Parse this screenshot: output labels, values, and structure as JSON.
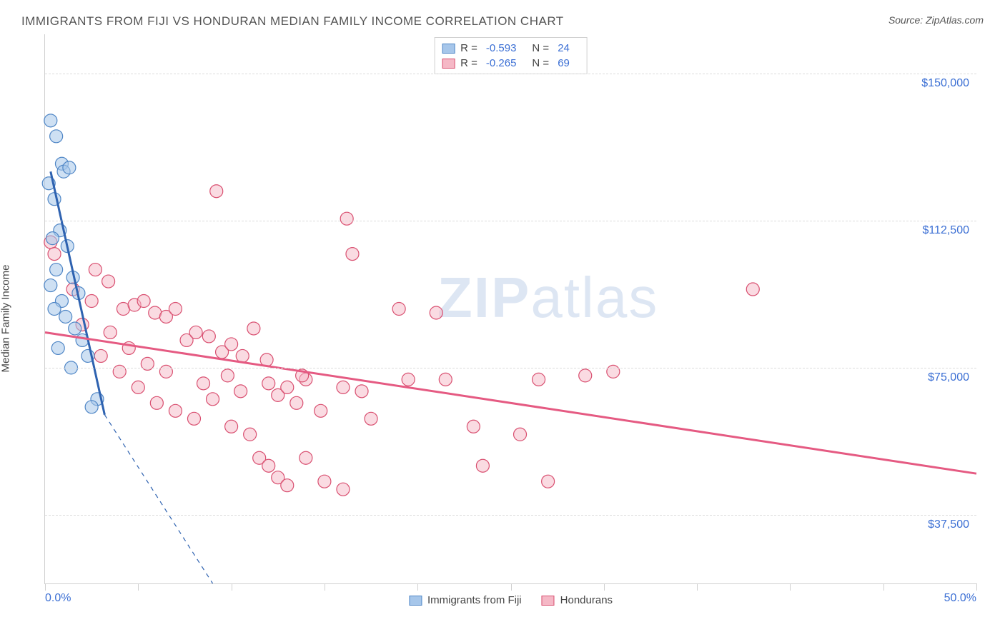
{
  "title": "IMMIGRANTS FROM FIJI VS HONDURAN MEDIAN FAMILY INCOME CORRELATION CHART",
  "source_label": "Source: ZipAtlas.com",
  "y_axis_label": "Median Family Income",
  "watermark": {
    "part1": "ZIP",
    "part2": "atlas"
  },
  "chart": {
    "type": "scatter",
    "background_color": "#ffffff",
    "grid_color": "#dcdcdc",
    "border_color": "#d0d0d0",
    "x": {
      "min": 0,
      "max": 50,
      "label_min": "0.0%",
      "label_max": "50.0%",
      "ticks_pct": [
        0,
        5,
        10,
        15,
        20,
        25,
        30,
        35,
        40,
        45,
        50
      ]
    },
    "y": {
      "min": 20000,
      "max": 160000,
      "gridlines": [
        37500,
        75000,
        112500,
        150000
      ],
      "tick_labels": [
        "$37,500",
        "$75,000",
        "$112,500",
        "$150,000"
      ]
    },
    "series": [
      {
        "name": "Immigrants from Fiji",
        "fill": "#a6c6ea",
        "stroke": "#4f86c6",
        "fill_opacity": 0.55,
        "marker_radius": 9,
        "R": "-0.593",
        "N": "24",
        "trend": {
          "x1": 0.3,
          "y1": 125000,
          "x2": 3.2,
          "y2": 63000,
          "dash_x2": 9.0,
          "dash_y2": 20000,
          "color": "#2e62b0",
          "width": 3
        },
        "points": [
          [
            0.3,
            138000
          ],
          [
            0.6,
            134000
          ],
          [
            0.9,
            127000
          ],
          [
            1.0,
            125000
          ],
          [
            1.3,
            126000
          ],
          [
            0.2,
            122000
          ],
          [
            0.5,
            118000
          ],
          [
            0.8,
            110000
          ],
          [
            0.4,
            108000
          ],
          [
            1.2,
            106000
          ],
          [
            0.6,
            100000
          ],
          [
            1.5,
            98000
          ],
          [
            0.3,
            96000
          ],
          [
            1.8,
            94000
          ],
          [
            0.9,
            92000
          ],
          [
            0.5,
            90000
          ],
          [
            1.1,
            88000
          ],
          [
            1.6,
            85000
          ],
          [
            2.0,
            82000
          ],
          [
            0.7,
            80000
          ],
          [
            2.3,
            78000
          ],
          [
            1.4,
            75000
          ],
          [
            2.8,
            67000
          ],
          [
            2.5,
            65000
          ]
        ]
      },
      {
        "name": "Hondurans",
        "fill": "#f5b8c6",
        "stroke": "#d94f70",
        "fill_opacity": 0.5,
        "marker_radius": 9,
        "R": "-0.265",
        "N": "69",
        "trend": {
          "x1": 0,
          "y1": 84000,
          "x2": 50,
          "y2": 48000,
          "color": "#e55a82",
          "width": 3
        },
        "points": [
          [
            0.3,
            107000
          ],
          [
            0.5,
            104000
          ],
          [
            9.2,
            120000
          ],
          [
            16.2,
            113000
          ],
          [
            16.5,
            104000
          ],
          [
            1.5,
            95000
          ],
          [
            2.7,
            100000
          ],
          [
            3.4,
            97000
          ],
          [
            4.2,
            90000
          ],
          [
            4.8,
            91000
          ],
          [
            5.3,
            92000
          ],
          [
            5.9,
            89000
          ],
          [
            6.5,
            88000
          ],
          [
            7.0,
            90000
          ],
          [
            7.6,
            82000
          ],
          [
            8.1,
            84000
          ],
          [
            8.8,
            83000
          ],
          [
            9.5,
            79000
          ],
          [
            10.0,
            81000
          ],
          [
            10.6,
            78000
          ],
          [
            11.2,
            85000
          ],
          [
            11.9,
            77000
          ],
          [
            12.5,
            68000
          ],
          [
            13.0,
            70000
          ],
          [
            13.5,
            66000
          ],
          [
            14.0,
            72000
          ],
          [
            14.8,
            64000
          ],
          [
            16.0,
            70000
          ],
          [
            17.0,
            69000
          ],
          [
            19.0,
            90000
          ],
          [
            19.5,
            72000
          ],
          [
            21.0,
            89000
          ],
          [
            21.5,
            72000
          ],
          [
            26.5,
            72000
          ],
          [
            29.0,
            73000
          ],
          [
            30.5,
            74000
          ],
          [
            38.0,
            95000
          ],
          [
            3.0,
            78000
          ],
          [
            4.0,
            74000
          ],
          [
            5.0,
            70000
          ],
          [
            6.0,
            66000
          ],
          [
            7.0,
            64000
          ],
          [
            8.0,
            62000
          ],
          [
            9.0,
            67000
          ],
          [
            10.0,
            60000
          ],
          [
            11.0,
            58000
          ],
          [
            11.5,
            52000
          ],
          [
            12.0,
            50000
          ],
          [
            12.5,
            47000
          ],
          [
            13.0,
            45000
          ],
          [
            14.0,
            52000
          ],
          [
            15.0,
            46000
          ],
          [
            16.0,
            44000
          ],
          [
            17.5,
            62000
          ],
          [
            23.0,
            60000
          ],
          [
            23.5,
            50000
          ],
          [
            25.5,
            58000
          ],
          [
            27.0,
            46000
          ],
          [
            2.0,
            86000
          ],
          [
            2.5,
            92000
          ],
          [
            3.5,
            84000
          ],
          [
            4.5,
            80000
          ],
          [
            5.5,
            76000
          ],
          [
            6.5,
            74000
          ],
          [
            8.5,
            71000
          ],
          [
            9.8,
            73000
          ],
          [
            10.5,
            69000
          ],
          [
            12.0,
            71000
          ],
          [
            13.8,
            73000
          ]
        ]
      }
    ]
  },
  "legend_bottom": [
    {
      "label": "Immigrants from Fiji",
      "fill": "#a6c6ea",
      "stroke": "#4f86c6"
    },
    {
      "label": "Hondurans",
      "fill": "#f5b8c6",
      "stroke": "#d94f70"
    }
  ]
}
